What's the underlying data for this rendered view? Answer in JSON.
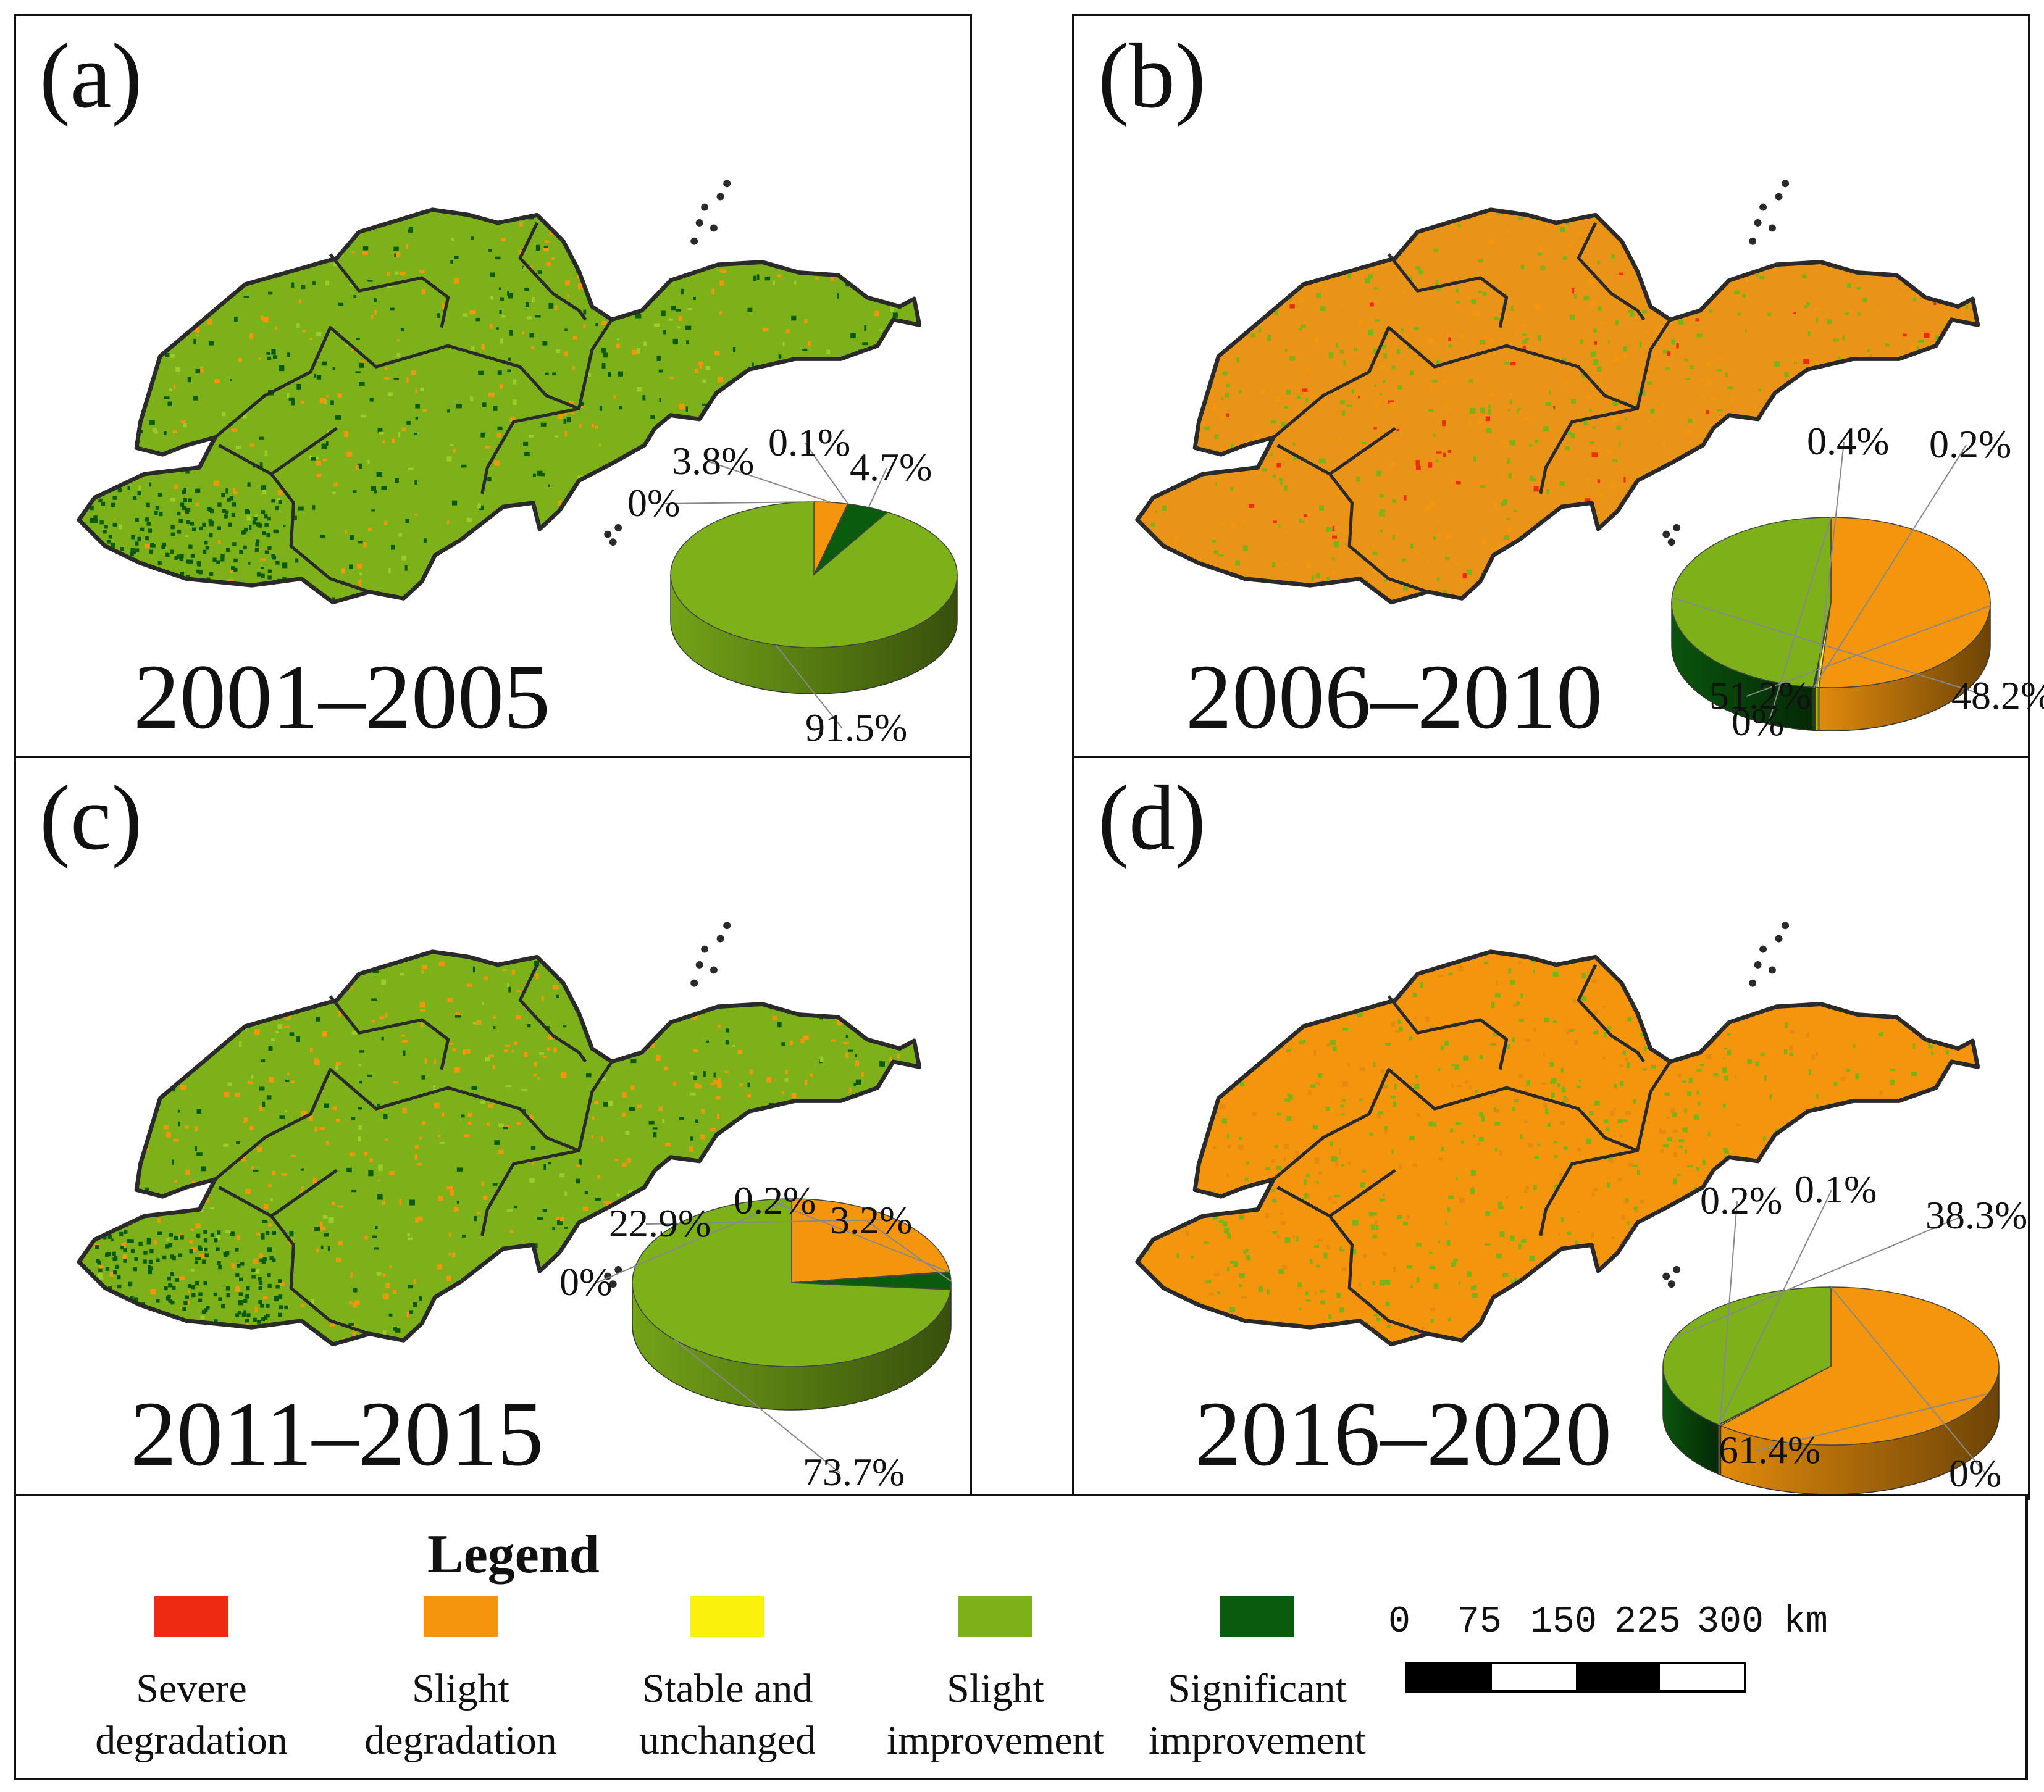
{
  "colors": {
    "severe_degradation": "#ee2a12",
    "slight_degradation": "#f3960e",
    "stable_unchanged": "#f8f20c",
    "slight_improvement": "#7db11a",
    "significant_improvement": "#0b5b0e",
    "boundary": "#2a2a2a"
  },
  "panels": [
    {
      "label": "(a)",
      "period": "2001–2005",
      "map_theme": "improvement",
      "pie": {
        "slices": [
          {
            "category": "Severe degradation",
            "value": 0,
            "label": "0%"
          },
          {
            "category": "Slight degradation",
            "value": 3.8,
            "label": "3.8%"
          },
          {
            "category": "Stable and unchanged",
            "value": 0.1,
            "label": "0.1%"
          },
          {
            "category": "Significant improvement",
            "value": 4.7,
            "label": "4.7%"
          },
          {
            "category": "Slight improvement",
            "value": 91.5,
            "label": "91.5%"
          }
        ]
      }
    },
    {
      "label": "(b)",
      "period": "2006–2010",
      "map_theme": "mixed-degradation",
      "pie": {
        "slices": [
          {
            "category": "Severe degradation",
            "value": 0,
            "label": "0%"
          },
          {
            "category": "Slight degradation",
            "value": 51.2,
            "label": "51.2%"
          },
          {
            "category": "Stable and unchanged",
            "value": 0.4,
            "label": "0.4%"
          },
          {
            "category": "Significant improvement",
            "value": 0.2,
            "label": "0.2%"
          },
          {
            "category": "Slight improvement",
            "value": 48.2,
            "label": "48.2%"
          }
        ]
      }
    },
    {
      "label": "(c)",
      "period": "2011–2015",
      "map_theme": "mixed-improvement",
      "pie": {
        "slices": [
          {
            "category": "Severe degradation",
            "value": 0,
            "label": "0%"
          },
          {
            "category": "Slight degradation",
            "value": 22.9,
            "label": "22.9%"
          },
          {
            "category": "Stable and unchanged",
            "value": 0.2,
            "label": "0.2%"
          },
          {
            "category": "Significant improvement",
            "value": 3.2,
            "label": "3.2%"
          },
          {
            "category": "Slight improvement",
            "value": 73.7,
            "label": "73.7%"
          }
        ]
      }
    },
    {
      "label": "(d)",
      "period": "2016–2020",
      "map_theme": "degradation",
      "pie": {
        "slices": [
          {
            "category": "Severe degradation",
            "value": 0,
            "label": "0%"
          },
          {
            "category": "Slight degradation",
            "value": 61.4,
            "label": "61.4%"
          },
          {
            "category": "Stable and unchanged",
            "value": 0.2,
            "label": "0.2%"
          },
          {
            "category": "Significant improvement",
            "value": 0.1,
            "label": "0.1%"
          },
          {
            "category": "Slight improvement",
            "value": 38.3,
            "label": "38.3%"
          }
        ]
      }
    }
  ],
  "legend": {
    "title": "Legend",
    "items": [
      {
        "label_line1": "Severe",
        "label_line2": "degradation",
        "color": "#ee2a12"
      },
      {
        "label_line1": "Slight",
        "label_line2": "degradation",
        "color": "#f3960e"
      },
      {
        "label_line1": "Stable and",
        "label_line2": "unchanged",
        "color": "#f8f20c"
      },
      {
        "label_line1": "Slight",
        "label_line2": "improvement",
        "color": "#7db11a"
      },
      {
        "label_line1": "Significant",
        "label_line2": "improvement",
        "color": "#0b5b0e"
      }
    ]
  },
  "scale_bar": {
    "ticks": [
      "0",
      "75",
      "150",
      "225",
      "300"
    ],
    "unit": "km"
  },
  "chart_data": [
    {
      "type": "pie",
      "title": "(a) 2001–2005",
      "categories": [
        "Severe degradation",
        "Slight degradation",
        "Stable and unchanged",
        "Slight improvement",
        "Significant improvement"
      ],
      "values": [
        0,
        3.8,
        0.1,
        91.5,
        4.7
      ]
    },
    {
      "type": "pie",
      "title": "(b) 2006–2010",
      "categories": [
        "Severe degradation",
        "Slight degradation",
        "Stable and unchanged",
        "Slight improvement",
        "Significant improvement"
      ],
      "values": [
        0,
        51.2,
        0.4,
        48.2,
        0.2
      ]
    },
    {
      "type": "pie",
      "title": "(c) 2011–2015",
      "categories": [
        "Severe degradation",
        "Slight degradation",
        "Stable and unchanged",
        "Slight improvement",
        "Significant improvement"
      ],
      "values": [
        0,
        22.9,
        0.2,
        73.7,
        3.2
      ]
    },
    {
      "type": "pie",
      "title": "(d) 2016–2020",
      "categories": [
        "Severe degradation",
        "Slight degradation",
        "Stable and unchanged",
        "Slight improvement",
        "Significant improvement"
      ],
      "values": [
        0,
        61.4,
        0.2,
        38.3,
        0.1
      ]
    }
  ]
}
